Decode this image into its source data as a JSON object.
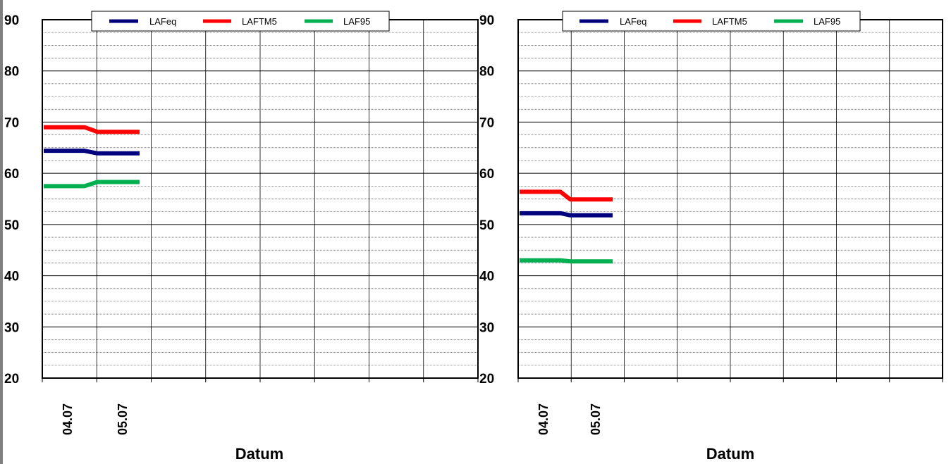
{
  "chart_data": [
    {
      "type": "line",
      "xlabel": "Datum",
      "ylabel": "",
      "ylim": [
        20,
        90
      ],
      "yticks": [
        "20",
        "30",
        "40",
        "50",
        "60",
        "70",
        "80",
        "90"
      ],
      "categories": [
        "04.07",
        "05.07"
      ],
      "grid": true,
      "legend_position": "top",
      "series": [
        {
          "name": "LAFeq",
          "color": "#00007f",
          "values": [
            64.4,
            63.9
          ]
        },
        {
          "name": "LAFTM5",
          "color": "#ff0000",
          "values": [
            69.0,
            68.1
          ]
        },
        {
          "name": "LAF95",
          "color": "#00b050",
          "values": [
            57.5,
            58.3
          ]
        }
      ]
    },
    {
      "type": "line",
      "xlabel": "Datum",
      "ylabel": "",
      "ylim": [
        20,
        90
      ],
      "yticks": [
        "20",
        "30",
        "40",
        "50",
        "60",
        "70",
        "80",
        "90"
      ],
      "categories": [
        "04.07",
        "05.07"
      ],
      "grid": true,
      "legend_position": "top",
      "series": [
        {
          "name": "LAFeq",
          "color": "#00007f",
          "values": [
            52.2,
            51.8
          ]
        },
        {
          "name": "LAFTM5",
          "color": "#ff0000",
          "values": [
            56.4,
            54.9
          ]
        },
        {
          "name": "LAF95",
          "color": "#00b050",
          "values": [
            43.0,
            42.8
          ]
        }
      ]
    }
  ]
}
